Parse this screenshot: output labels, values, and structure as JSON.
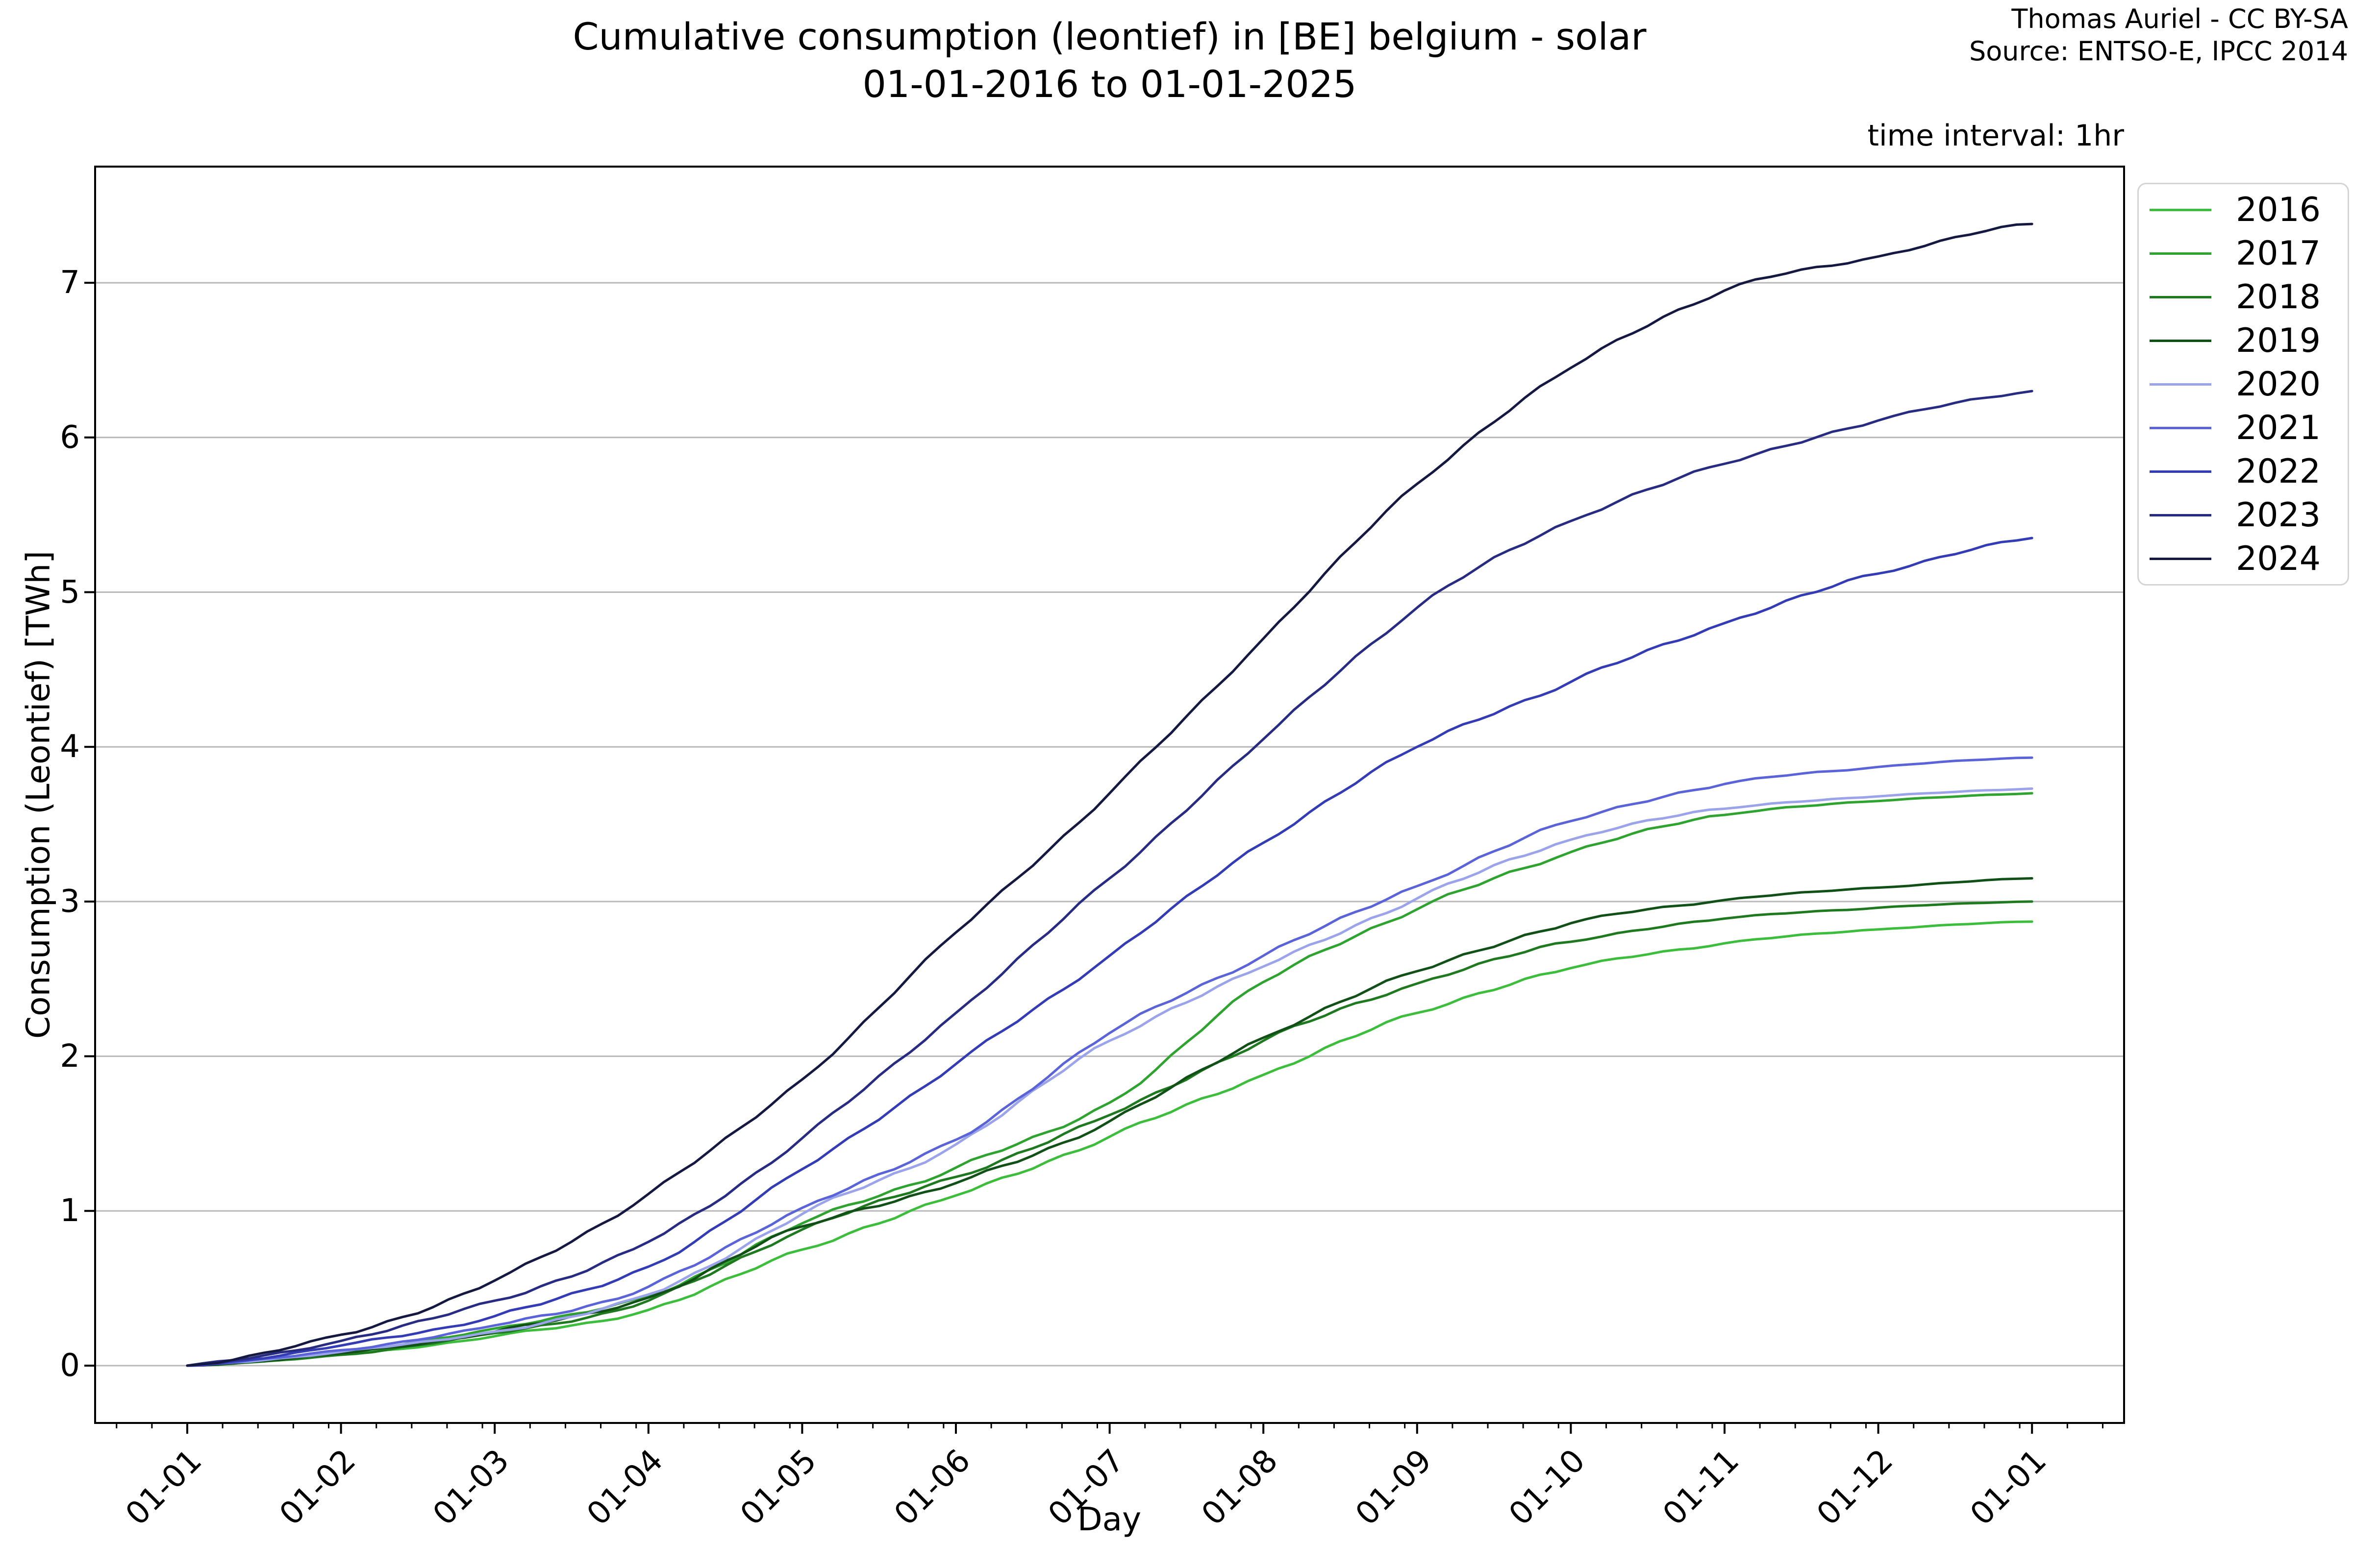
{
  "header": {
    "attribution_line1": "Thomas Auriel - CC BY-SA",
    "attribution_line2": "Source: ENTSO-E, IPCC 2014"
  },
  "chart_data": {
    "type": "line",
    "title_line1": "Cumulative consumption (leontief) in [BE] belgium - solar",
    "title_line2": "01-01-2016 to 01-01-2025",
    "annotation": "time interval: 1hr",
    "xlabel": "Day",
    "ylabel": "Consumption (Leontief) [TWh]",
    "x_tick_labels": [
      "01-01",
      "01-02",
      "01-03",
      "01-04",
      "01-05",
      "01-06",
      "01-07",
      "01-08",
      "01-09",
      "01-10",
      "01-11",
      "01-12",
      "01-01"
    ],
    "y_ticks": [
      0,
      1,
      2,
      3,
      4,
      5,
      6,
      7
    ],
    "xlim_months": [
      -0.6,
      12.6
    ],
    "ylim": [
      -0.37,
      7.75
    ],
    "grid": "horizontal-only",
    "grid_color": "#b9b9b9",
    "axis_color": "#000000",
    "legend_position": "upper-right-outside",
    "series": [
      {
        "name": "2016",
        "color": "#3cbe3c",
        "final_value_twh": 2.87,
        "monthly_values": [
          0,
          0.07,
          0.19,
          0.36,
          0.75,
          1.1,
          1.48,
          1.88,
          2.28,
          2.57,
          2.73,
          2.82,
          2.87
        ]
      },
      {
        "name": "2017",
        "color": "#2fa32f",
        "final_value_twh": 3.7,
        "monthly_values": [
          0,
          0.08,
          0.24,
          0.45,
          0.92,
          1.28,
          1.7,
          2.48,
          2.95,
          3.32,
          3.56,
          3.65,
          3.7
        ]
      },
      {
        "name": "2018",
        "color": "#1f7a1f",
        "final_value_twh": 3.0,
        "monthly_values": [
          0,
          0.07,
          0.21,
          0.42,
          0.88,
          1.22,
          1.62,
          2.1,
          2.47,
          2.74,
          2.89,
          2.96,
          3.0
        ]
      },
      {
        "name": "2019",
        "color": "#115016",
        "final_value_twh": 3.15,
        "monthly_values": [
          0,
          0.08,
          0.22,
          0.44,
          0.9,
          1.18,
          1.58,
          2.12,
          2.55,
          2.86,
          3.01,
          3.09,
          3.15
        ]
      },
      {
        "name": "2020",
        "color": "#9ba3ea",
        "final_value_twh": 3.73,
        "monthly_values": [
          0,
          0.09,
          0.22,
          0.46,
          0.98,
          1.43,
          2.1,
          2.58,
          3.02,
          3.4,
          3.6,
          3.68,
          3.73
        ]
      },
      {
        "name": "2021",
        "color": "#5a64d8",
        "final_value_twh": 3.93,
        "monthly_values": [
          0,
          0.1,
          0.26,
          0.51,
          1.02,
          1.46,
          2.15,
          2.65,
          3.1,
          3.52,
          3.76,
          3.87,
          3.93
        ]
      },
      {
        "name": "2022",
        "color": "#333cb4",
        "final_value_twh": 5.35,
        "monthly_values": [
          0,
          0.13,
          0.32,
          0.64,
          1.27,
          1.95,
          2.65,
          3.38,
          4.0,
          4.42,
          4.8,
          5.12,
          5.35
        ]
      },
      {
        "name": "2023",
        "color": "#272c82",
        "final_value_twh": 6.3,
        "monthly_values": [
          0,
          0.16,
          0.42,
          0.8,
          1.47,
          2.28,
          3.15,
          4.05,
          4.9,
          5.46,
          5.83,
          6.11,
          6.3
        ]
      },
      {
        "name": "2024",
        "color": "#151840",
        "final_value_twh": 7.38,
        "monthly_values": [
          0,
          0.2,
          0.55,
          1.11,
          1.85,
          2.8,
          3.7,
          4.7,
          5.7,
          6.45,
          6.95,
          7.17,
          7.38
        ]
      }
    ]
  }
}
